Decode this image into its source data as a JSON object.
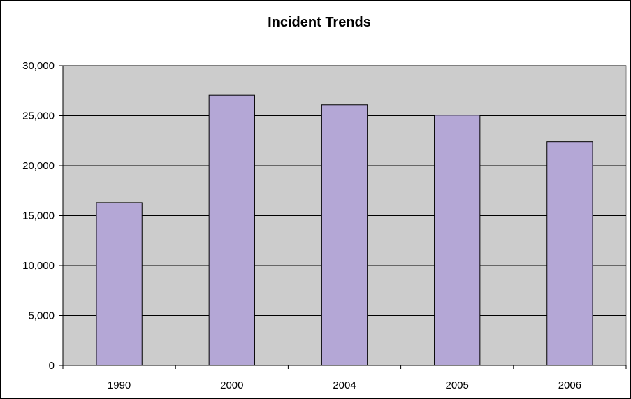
{
  "chart_data": {
    "type": "bar",
    "title": "Incident Trends",
    "xlabel": "",
    "ylabel": "",
    "categories": [
      "1990",
      "2000",
      "2004",
      "2005",
      "2006"
    ],
    "values": [
      16300,
      27050,
      26100,
      25050,
      22400
    ],
    "ylim": [
      0,
      30000
    ],
    "yticks": [
      0,
      5000,
      10000,
      15000,
      20000,
      25000,
      30000
    ],
    "ytick_labels": [
      "0",
      "5,000",
      "10,000",
      "15,000",
      "20,000",
      "25,000",
      "30,000"
    ],
    "grid": true,
    "legend": "none",
    "colors": {
      "bar_fill": "#b4a7d6",
      "bar_stroke": "#000000",
      "plot_background": "#cccccc",
      "gridline": "#000000"
    }
  }
}
